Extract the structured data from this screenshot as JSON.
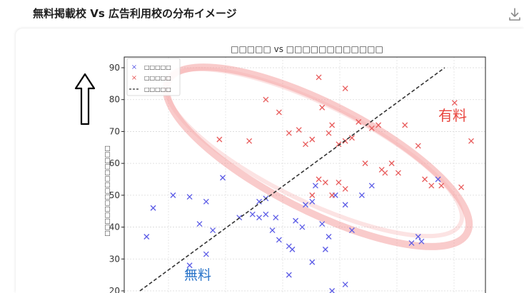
{
  "header": {
    "title": "無料掲載校 Vs 広告利用校の分布イメージ",
    "download_icon": "download-icon"
  },
  "annotations": {
    "paid_label": "有料",
    "free_label": "無料",
    "paid_color": "#e8433c",
    "free_color": "#2a74c9",
    "arrow_icon": "up-arrow-icon"
  },
  "chart_data": {
    "type": "scatter",
    "title": "□□□□□ vs □□□□□□□□□□□□",
    "xlabel": "",
    "ylabel": "□□□□□□□□□□□□□□□",
    "ylim": [
      20,
      92
    ],
    "yticks": [
      20,
      30,
      40,
      50,
      60,
      70,
      80,
      90
    ],
    "grid": true,
    "legend_position": "top-left",
    "series": [
      {
        "name": "□□□□□",
        "marker": "x",
        "color": "#5b5be6",
        "points": [
          [
            0.02,
            37
          ],
          [
            0.04,
            46
          ],
          [
            0.1,
            50
          ],
          [
            0.15,
            49.5
          ],
          [
            0.2,
            48
          ],
          [
            0.25,
            55.5
          ],
          [
            0.3,
            43
          ],
          [
            0.34,
            44
          ],
          [
            0.36,
            43
          ],
          [
            0.38,
            49
          ],
          [
            0.36,
            48
          ],
          [
            0.4,
            39
          ],
          [
            0.42,
            36
          ],
          [
            0.45,
            34
          ],
          [
            0.46,
            33
          ],
          [
            0.47,
            42
          ],
          [
            0.49,
            40
          ],
          [
            0.5,
            47
          ],
          [
            0.52,
            48
          ],
          [
            0.53,
            53
          ],
          [
            0.55,
            41
          ],
          [
            0.57,
            37
          ],
          [
            0.59,
            50
          ],
          [
            0.62,
            47
          ],
          [
            0.64,
            39
          ],
          [
            0.67,
            50
          ],
          [
            0.7,
            53
          ],
          [
            0.45,
            25
          ],
          [
            0.52,
            29
          ],
          [
            0.58,
            20
          ],
          [
            0.62,
            22
          ],
          [
            0.15,
            28
          ],
          [
            0.2,
            31.5
          ],
          [
            0.22,
            39
          ],
          [
            0.18,
            41
          ],
          [
            0.82,
            35
          ],
          [
            0.84,
            37
          ],
          [
            0.85,
            35.5
          ],
          [
            0.9,
            55
          ],
          [
            0.38,
            44
          ],
          [
            0.41,
            43
          ],
          [
            0.56,
            33
          ]
        ]
      },
      {
        "name": "□□□□□",
        "marker": "x",
        "color": "#e85a5a",
        "points": [
          [
            0.24,
            67.5
          ],
          [
            0.33,
            67
          ],
          [
            0.38,
            80
          ],
          [
            0.42,
            76
          ],
          [
            0.45,
            69.5
          ],
          [
            0.48,
            70.5
          ],
          [
            0.5,
            66
          ],
          [
            0.52,
            67.5
          ],
          [
            0.54,
            87
          ],
          [
            0.55,
            77.5
          ],
          [
            0.57,
            69.5
          ],
          [
            0.58,
            72
          ],
          [
            0.6,
            66
          ],
          [
            0.62,
            67
          ],
          [
            0.64,
            68
          ],
          [
            0.66,
            73
          ],
          [
            0.62,
            83.5
          ],
          [
            0.7,
            71
          ],
          [
            0.72,
            72
          ],
          [
            0.68,
            60
          ],
          [
            0.74,
            57
          ],
          [
            0.76,
            60
          ],
          [
            0.78,
            57
          ],
          [
            0.73,
            58
          ],
          [
            0.8,
            72
          ],
          [
            0.84,
            65.5
          ],
          [
            0.86,
            55
          ],
          [
            0.88,
            53
          ],
          [
            0.91,
            53
          ],
          [
            0.95,
            79
          ],
          [
            0.97,
            52.5
          ],
          [
            1.0,
            67
          ],
          [
            0.62,
            52
          ],
          [
            0.6,
            54
          ],
          [
            0.58,
            50
          ],
          [
            0.56,
            54
          ],
          [
            0.52,
            50
          ],
          [
            0.54,
            55
          ]
        ]
      },
      {
        "name": "□□□□□",
        "type": "line",
        "style": "dashed",
        "color": "#333333",
        "points": [
          [
            0.0,
            20
          ],
          [
            0.92,
            90
          ]
        ]
      }
    ]
  }
}
